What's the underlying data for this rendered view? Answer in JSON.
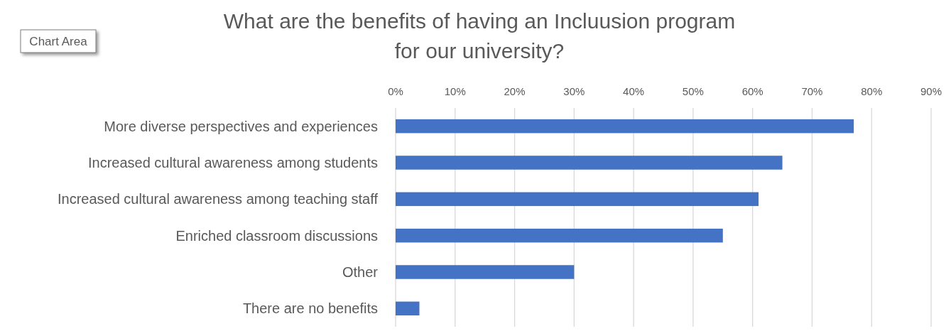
{
  "chart_data": {
    "type": "bar",
    "orientation": "horizontal",
    "title": "What are the benefits of having an Incluusion program\nfor our university?",
    "categories": [
      "More diverse perspectives and experiences",
      "Increased cultural awareness among students",
      "Increased cultural awareness among teaching staff",
      "Enriched classroom discussions",
      "Other",
      "There are no benefits"
    ],
    "values": [
      77,
      65,
      61,
      55,
      30,
      4
    ],
    "color": "#4472c4",
    "xlim": [
      0,
      90
    ],
    "xticks": [
      {
        "value": 0,
        "label": "0%"
      },
      {
        "value": 10,
        "label": "10%"
      },
      {
        "value": 20,
        "label": "20%"
      },
      {
        "value": 30,
        "label": "30%"
      },
      {
        "value": 40,
        "label": "40%"
      },
      {
        "value": 50,
        "label": "50%"
      },
      {
        "value": 60,
        "label": "60%"
      },
      {
        "value": 70,
        "label": "70%"
      },
      {
        "value": 80,
        "label": "80%"
      },
      {
        "value": 90,
        "label": "90%"
      }
    ],
    "grid": "x",
    "annotations": [
      "Chart Area"
    ]
  }
}
